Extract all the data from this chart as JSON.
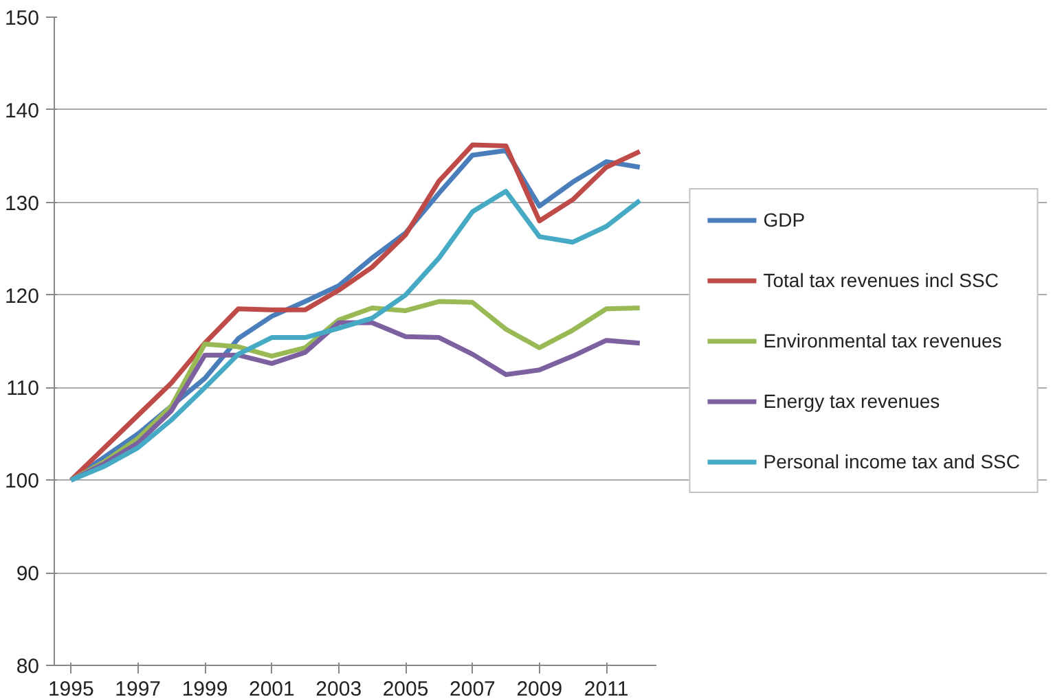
{
  "chart_data": {
    "type": "line",
    "categories": [
      "1995",
      null,
      "1997",
      null,
      "1999",
      null,
      "2001",
      null,
      "2003",
      null,
      "2005",
      null,
      "2007",
      null,
      "2009",
      null,
      "2011",
      null
    ],
    "series": [
      {
        "name": "GDP",
        "color": "#4a7ebb",
        "values": [
          100,
          102.5,
          105,
          108,
          111,
          115.3,
          117.7,
          119.3,
          121,
          124,
          126.7,
          131,
          135.1,
          135.6,
          129.6,
          132.2,
          134.4,
          133.8
        ]
      },
      {
        "name": "Total tax revenues incl SSC",
        "color": "#be4b48",
        "values": [
          100,
          103.5,
          107,
          110.5,
          114.8,
          118.5,
          118.4,
          118.4,
          120.5,
          123,
          126.5,
          132.3,
          136.2,
          136.1,
          128,
          130.3,
          133.8,
          135.5
        ]
      },
      {
        "name": "Environmental tax revenues",
        "color": "#98b954",
        "values": [
          100,
          102,
          104.5,
          108,
          114.7,
          114.4,
          113.4,
          114.3,
          117.3,
          118.6,
          118.3,
          119.3,
          119.2,
          116.3,
          114.3,
          116.2,
          118.5,
          118.6
        ]
      },
      {
        "name": "Energy tax revenues",
        "color": "#7d60a0",
        "values": [
          100,
          101.8,
          104,
          107.5,
          113.5,
          113.5,
          112.6,
          113.8,
          117,
          117,
          115.5,
          115.4,
          113.6,
          111.4,
          111.9,
          113.4,
          115.1,
          114.8
        ]
      },
      {
        "name": "Personal income tax and SSC",
        "color": "#46aac5",
        "values": [
          100,
          101.5,
          103.5,
          106.5,
          110,
          113.6,
          115.4,
          115.4,
          116.4,
          117.5,
          120,
          124,
          129,
          131.2,
          126.3,
          125.7,
          127.4,
          130.2
        ]
      }
    ],
    "ylim": [
      80,
      150
    ],
    "yticks": [
      80,
      90,
      100,
      110,
      120,
      130,
      140,
      150
    ],
    "grid": "y",
    "legend": "right",
    "line_style": "solid",
    "marker": "none"
  }
}
